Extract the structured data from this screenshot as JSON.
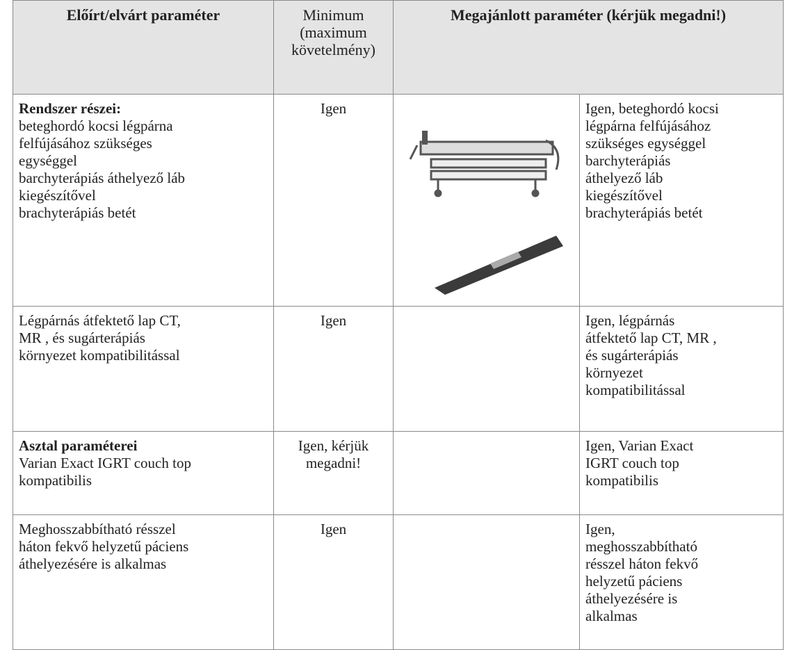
{
  "header": {
    "col1": "Előírt/elvárt paraméter",
    "col2": [
      "Minimum",
      "(maximum",
      "követelmény)"
    ],
    "col3": "Megajánlott paraméter (kérjük megadni!)"
  },
  "rows": [
    {
      "title": "Rendszer részei:",
      "lines": [
        "beteghordó kocsi légpárna",
        "felfújásához szükséges",
        "egységgel",
        "barchyterápiás áthelyező láb",
        "kiegészítővel",
        "brachyterápiás betét"
      ],
      "minimum": [
        "Igen"
      ],
      "offer": [
        "Igen, beteghordó kocsi",
        "légpárna felfújásához",
        "szükséges egységgel",
        "barchyterápiás",
        "áthelyező láb",
        "kiegészítővel",
        "brachyterápiás betét"
      ]
    },
    {
      "lines": [
        "Légpárnás átfektető lap CT,",
        "MR , és sugárterápiás",
        "környezet kompatibilitással"
      ],
      "minimum": [
        "Igen"
      ],
      "offer": [
        "Igen, légpárnás",
        "átfektető lap CT, MR ,",
        "és sugárterápiás",
        "környezet",
        "kompatibilitással"
      ]
    },
    {
      "title": "Asztal paraméterei",
      "lines": [
        "Varian Exact IGRT couch top",
        "kompatibilis"
      ],
      "minimum": [
        "Igen, kérjük",
        "megadni!"
      ],
      "offer": [
        "Igen, Varian Exact",
        "IGRT couch top",
        "kompatibilis"
      ]
    },
    {
      "lines": [
        "Meghosszabbítható résszel",
        "háton fekvő helyzetű páciens",
        "áthelyezésére is alkalmas"
      ],
      "minimum": [
        "Igen"
      ],
      "offer": [
        "Igen,",
        "meghosszabbítható",
        "résszel háton fekvő",
        "helyzetű páciens",
        "áthelyezésére is",
        "alkalmas"
      ]
    }
  ]
}
